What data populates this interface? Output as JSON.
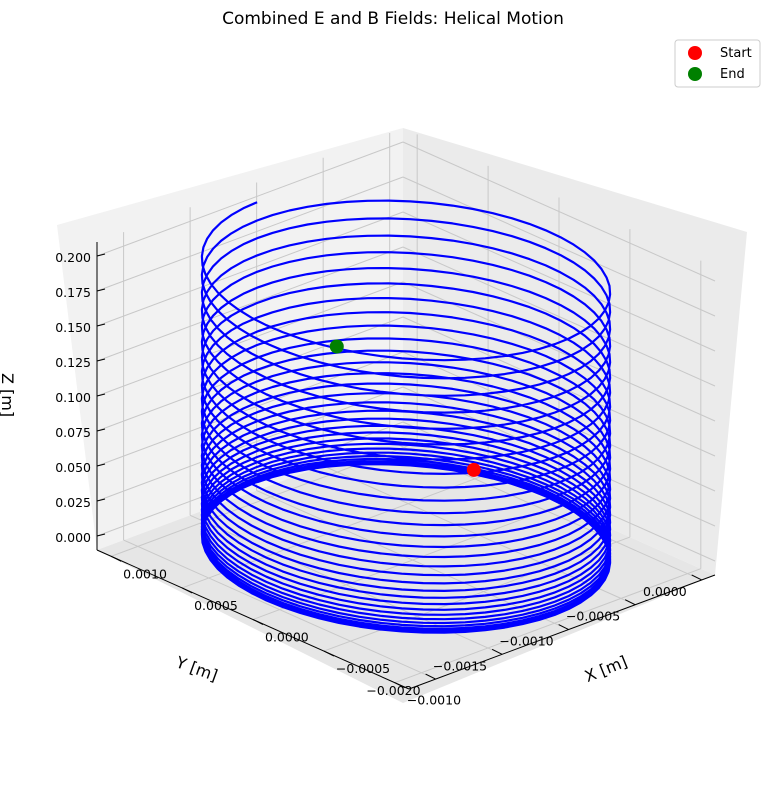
{
  "chart_data": {
    "type": "line3d",
    "title": "Combined E and B Fields: Helical Motion",
    "xlabel": "X [m]",
    "ylabel": "Y [m]",
    "zlabel": "Z [m]",
    "x_ticks": [
      "0.0010",
      "0.0005",
      "0.0000",
      "−0.0005",
      "−0.0010"
    ],
    "y_ticks": [
      "−0.0020",
      "−0.0015",
      "−0.0010",
      "−0.0005",
      "0.0000"
    ],
    "z_ticks": [
      "0.000",
      "0.025",
      "0.050",
      "0.075",
      "0.100",
      "0.125",
      "0.150",
      "0.175",
      "0.200"
    ],
    "xlim": [
      -0.0011,
      0.0011
    ],
    "ylim": [
      -0.0022,
      0.0001
    ],
    "zlim": [
      -0.01,
      0.21
    ],
    "helix": {
      "center_x": 0.0,
      "center_y": -0.00105,
      "radius": 0.00105,
      "z_start": 0.0,
      "z_end": 0.2,
      "turns": 30
    },
    "series": [
      {
        "name": "Start",
        "color": "#ff0000",
        "point": {
          "x": 0.00046,
          "y": -5e-05,
          "z": 0.0
        }
      },
      {
        "name": "End",
        "color": "#008000",
        "point": {
          "x": -0.00045,
          "y": -0.00205,
          "z": 0.2
        }
      }
    ],
    "line_color": "#0000ff",
    "grid": true,
    "legend": "top-right"
  }
}
